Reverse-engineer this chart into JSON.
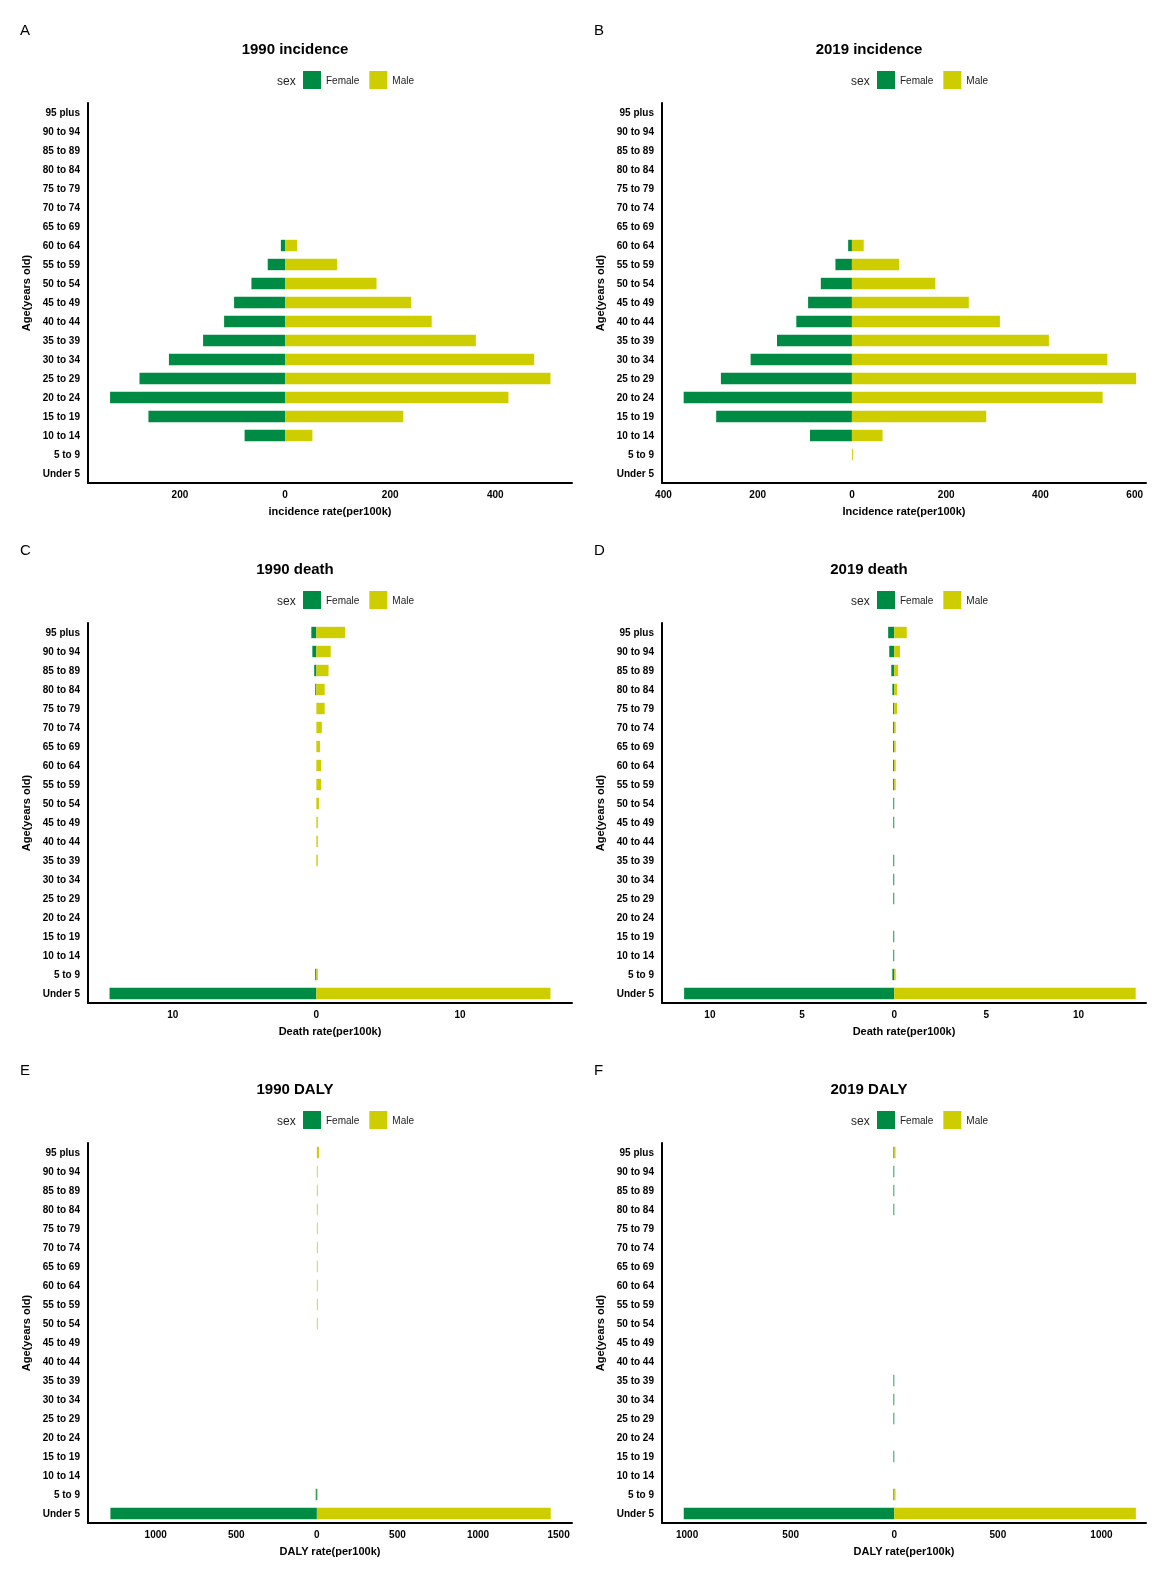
{
  "chart_data": [
    {
      "type": "bar",
      "orientation": "horizontal",
      "stacked": true,
      "title": "1990 incidence",
      "xlabel": "incidence rate(per100k)",
      "ylabel": "Age(years old)",
      "legend_title": "sex",
      "legend": "top",
      "annotations": [
        "A"
      ],
      "categories": [
        "95 plus",
        "90 to 94",
        "85 to 89",
        "80 to 84",
        "75 to 79",
        "70 to 74",
        "65 to 69",
        "60 to 64",
        "55 to 59",
        "50 to 54",
        "45 to 49",
        "40 to 44",
        "35 to 39",
        "30 to 34",
        "25 to 29",
        "20 to 24",
        "15 to 19",
        "10 to 14",
        "5 to 9",
        "Under 5"
      ],
      "xlim": [
        -375,
        546
      ],
      "xticks": [
        {
          "value": -200,
          "label": "200"
        },
        0,
        200,
        400
      ],
      "series": [
        {
          "name": "Female",
          "color": "#008b45",
          "values": [
            null,
            null,
            null,
            null,
            null,
            null,
            null,
            -8,
            -33,
            -64,
            -97,
            -116,
            -156,
            -221,
            -277,
            -333,
            -260,
            -77,
            null,
            null
          ]
        },
        {
          "name": "Male",
          "color": "#cdcd00",
          "values": [
            null,
            null,
            null,
            null,
            null,
            null,
            null,
            23,
            99,
            174,
            240,
            279,
            363,
            474,
            505,
            425,
            225,
            52,
            null,
            null
          ]
        }
      ]
    },
    {
      "type": "bar",
      "orientation": "horizontal",
      "stacked": true,
      "title": "2019 incidence",
      "xlabel": "Incidence rate(per100k)",
      "ylabel": "Age(years old)",
      "legend_title": "sex",
      "legend": "top",
      "annotations": [
        "B"
      ],
      "categories": [
        "95 plus",
        "90 to 94",
        "85 to 89",
        "80 to 84",
        "75 to 79",
        "70 to 74",
        "65 to 69",
        "60 to 64",
        "55 to 59",
        "50 to 54",
        "45 to 49",
        "40 to 44",
        "35 to 39",
        "30 to 34",
        "25 to 29",
        "20 to 24",
        "15 to 19",
        "10 to 14",
        "5 to 9",
        "Under 5"
      ],
      "xlim": [
        -403,
        624
      ],
      "xticks": [
        {
          "value": -400,
          "label": "400"
        },
        {
          "value": -200,
          "label": "200"
        },
        0,
        200,
        400,
        600
      ],
      "series": [
        {
          "name": "Female",
          "color": "#008b45",
          "values": [
            null,
            null,
            null,
            null,
            null,
            null,
            null,
            -8,
            -35,
            -66,
            -93,
            -118,
            -159,
            -215,
            -278,
            -357,
            -288,
            -89,
            null,
            null
          ]
        },
        {
          "name": "Male",
          "color": "#cdcd00",
          "values": [
            null,
            null,
            null,
            null,
            null,
            null,
            null,
            25,
            100,
            177,
            248,
            314,
            418,
            542,
            603,
            532,
            285,
            65,
            2,
            null
          ]
        }
      ]
    },
    {
      "type": "bar",
      "orientation": "horizontal",
      "stacked": true,
      "title": "1990 death",
      "xlabel": "Death rate(per100k)",
      "ylabel": "Age(years old)",
      "legend_title": "sex",
      "legend": "top",
      "annotations": [
        "C"
      ],
      "categories": [
        "95 plus",
        "90 to 94",
        "85 to 89",
        "80 to 84",
        "75 to 79",
        "70 to 74",
        "65 to 69",
        "60 to 64",
        "55 to 59",
        "50 to 54",
        "45 to 49",
        "40 to 44",
        "35 to 39",
        "30 to 34",
        "25 to 29",
        "20 to 24",
        "15 to 19",
        "10 to 14",
        "5 to 9",
        "Under 5"
      ],
      "xlim": [
        -15.9,
        17.8
      ],
      "xticks": [
        {
          "value": -10,
          "label": "10"
        },
        0,
        10
      ],
      "series": [
        {
          "name": "Female",
          "color": "#008b45",
          "values": [
            -0.35,
            -0.28,
            -0.15,
            -0.08,
            null,
            null,
            null,
            null,
            null,
            null,
            null,
            null,
            null,
            null,
            null,
            null,
            null,
            null,
            -0.08,
            -14.4
          ]
        },
        {
          "name": "Male",
          "color": "#cdcd00",
          "values": [
            2.0,
            1.0,
            0.85,
            0.58,
            0.58,
            0.38,
            0.25,
            0.33,
            0.33,
            0.18,
            0.1,
            0.1,
            0.1,
            null,
            null,
            null,
            null,
            null,
            0.1,
            16.3
          ]
        }
      ]
    },
    {
      "type": "bar",
      "orientation": "horizontal",
      "stacked": true,
      "title": "2019 death",
      "xlabel": "Death rate(per100k)",
      "ylabel": "Age(years old)",
      "legend_title": "sex",
      "legend": "top",
      "annotations": [
        "D"
      ],
      "categories": [
        "95 plus",
        "90 to 94",
        "85 to 89",
        "80 to 84",
        "75 to 79",
        "70 to 74",
        "65 to 69",
        "60 to 64",
        "55 to 59",
        "50 to 54",
        "45 to 49",
        "40 to 44",
        "35 to 39",
        "30 to 34",
        "25 to 29",
        "20 to 24",
        "15 to 19",
        "10 to 14",
        "5 to 9",
        "Under 5"
      ],
      "xlim": [
        -12.6,
        13.66
      ],
      "xticks": [
        {
          "value": -10,
          "label": "10"
        },
        {
          "value": -5,
          "label": "5"
        },
        0,
        5,
        10
      ],
      "series": [
        {
          "name": "Female",
          "color": "#008b45",
          "values": [
            -0.33,
            -0.27,
            -0.16,
            -0.1,
            -0.06,
            -0.06,
            -0.06,
            -0.06,
            -0.06,
            -0.05,
            -0.05,
            null,
            -0.05,
            -0.05,
            -0.05,
            null,
            -0.05,
            -0.05,
            -0.1,
            -11.4
          ]
        },
        {
          "name": "Male",
          "color": "#cdcd00",
          "values": [
            0.68,
            0.31,
            0.21,
            0.15,
            0.15,
            0.08,
            0.08,
            0.08,
            0.08,
            null,
            null,
            null,
            null,
            null,
            null,
            null,
            null,
            null,
            0.08,
            13.1
          ]
        }
      ]
    },
    {
      "type": "bar",
      "orientation": "horizontal",
      "stacked": true,
      "title": "1990 DALY",
      "xlabel": "DALY rate(per100k)",
      "ylabel": "Age(years old)",
      "legend_title": "sex",
      "legend": "top",
      "annotations": [
        "E"
      ],
      "categories": [
        "95 plus",
        "90 to 94",
        "85 to 89",
        "80 to 84",
        "75 to 79",
        "70 to 74",
        "65 to 69",
        "60 to 64",
        "55 to 59",
        "50 to 54",
        "45 to 49",
        "40 to 44",
        "35 to 39",
        "30 to 34",
        "25 to 29",
        "20 to 24",
        "15 to 19",
        "10 to 14",
        "5 to 9",
        "Under 5"
      ],
      "xlim": [
        -1420,
        1583
      ],
      "xticks": [
        {
          "value": -1000,
          "label": "1000"
        },
        {
          "value": -500,
          "label": "500"
        },
        0,
        500,
        1000,
        1500
      ],
      "series": [
        {
          "name": "Female",
          "color": "#008b45",
          "values": [
            null,
            null,
            null,
            null,
            null,
            null,
            null,
            null,
            null,
            null,
            null,
            null,
            null,
            null,
            null,
            null,
            null,
            null,
            -7,
            -1281
          ]
        },
        {
          "name": "Male",
          "color": "#cdcd00",
          "values": [
            13,
            5,
            5,
            5,
            5,
            5,
            5,
            5,
            5,
            5,
            null,
            null,
            null,
            null,
            null,
            null,
            null,
            null,
            5,
            1451
          ]
        }
      ]
    },
    {
      "type": "bar",
      "orientation": "horizontal",
      "stacked": true,
      "title": "2019 DALY",
      "xlabel": "DALY rate(per100k)",
      "ylabel": "Age(years old)",
      "legend_title": "sex",
      "legend": "top",
      "annotations": [
        "F"
      ],
      "categories": [
        "95 plus",
        "90 to 94",
        "85 to 89",
        "80 to 84",
        "75 to 79",
        "70 to 74",
        "65 to 69",
        "60 to 64",
        "55 to 59",
        "50 to 54",
        "45 to 49",
        "40 to 44",
        "35 to 39",
        "30 to 34",
        "25 to 29",
        "20 to 24",
        "15 to 19",
        "10 to 14",
        "5 to 9",
        "Under 5"
      ],
      "xlim": [
        -1121,
        1215
      ],
      "xticks": [
        {
          "value": -1000,
          "label": "1000"
        },
        {
          "value": -500,
          "label": "500"
        },
        0,
        500,
        1000
      ],
      "series": [
        {
          "name": "Female",
          "color": "#008b45",
          "values": [
            -4,
            -4,
            -4,
            -4,
            null,
            null,
            null,
            null,
            null,
            null,
            null,
            null,
            -4,
            -4,
            -4,
            null,
            -4,
            null,
            -4,
            -1016
          ]
        },
        {
          "name": "Male",
          "color": "#cdcd00",
          "values": [
            6,
            null,
            null,
            null,
            null,
            null,
            null,
            null,
            null,
            null,
            null,
            null,
            null,
            null,
            null,
            null,
            null,
            null,
            6,
            1166
          ]
        }
      ]
    }
  ]
}
